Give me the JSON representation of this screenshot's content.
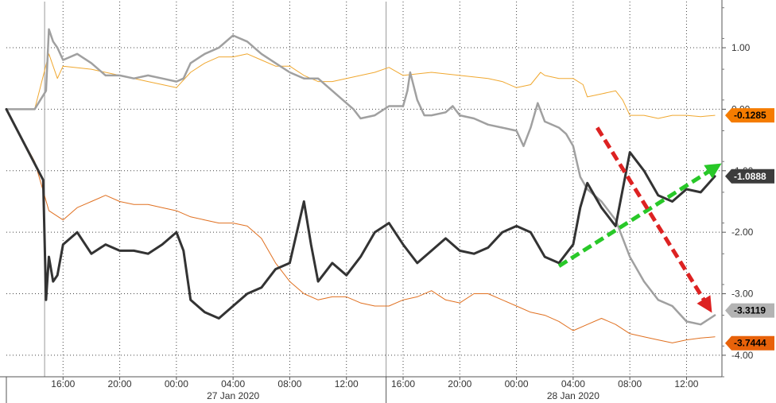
{
  "chart_data": {
    "type": "line",
    "title": "",
    "xlabel": "",
    "ylabel": "",
    "ylim": [
      -4.35,
      1.75
    ],
    "y_ticks": [
      {
        "value": 1.0,
        "label": "1.00"
      },
      {
        "value": 0.0,
        "label": "0.00"
      },
      {
        "value": -1.0,
        "label": "-1.00"
      },
      {
        "value": -2.0,
        "label": "-2.00"
      },
      {
        "value": -3.0,
        "label": "-3.00"
      },
      {
        "value": -4.0,
        "label": "-4.00"
      }
    ],
    "x_ticks": [
      "16:00",
      "20:00",
      "00:00",
      "04:00",
      "08:00",
      "12:00",
      "16:00",
      "20:00",
      "00:00",
      "04:00",
      "08:00",
      "12:00"
    ],
    "x_tick_hours": [
      16,
      20,
      24,
      28,
      32,
      36,
      40,
      44,
      48,
      52,
      56,
      60
    ],
    "date_labels": [
      {
        "label": "27 Jan 2020",
        "hour": 28
      },
      {
        "label": "28 Jan 2020",
        "hour": 52
      }
    ],
    "x_range_hours": [
      12,
      62.5
    ],
    "grid": true,
    "series": [
      {
        "color": "#f0a830",
        "width": 1,
        "last_value": "-0.1285",
        "badge_color": "#f57c00",
        "badge_text_color": "#000000",
        "points": [
          [
            12,
            0
          ],
          [
            14,
            0
          ],
          [
            15,
            0.9
          ],
          [
            15.6,
            0.5
          ],
          [
            16,
            0.7
          ],
          [
            18,
            0.65
          ],
          [
            20,
            0.55
          ],
          [
            22,
            0.45
          ],
          [
            24,
            0.35
          ],
          [
            25,
            0.6
          ],
          [
            26,
            0.75
          ],
          [
            27,
            0.85
          ],
          [
            28,
            0.85
          ],
          [
            29,
            0.9
          ],
          [
            30,
            0.8
          ],
          [
            31,
            0.7
          ],
          [
            32,
            0.7
          ],
          [
            33,
            0.55
          ],
          [
            34,
            0.45
          ],
          [
            35,
            0.45
          ],
          [
            36,
            0.5
          ],
          [
            37,
            0.55
          ],
          [
            38,
            0.6
          ],
          [
            39,
            0.68
          ],
          [
            40,
            0.55
          ],
          [
            42,
            0.6
          ],
          [
            44,
            0.55
          ],
          [
            46,
            0.5
          ],
          [
            47,
            0.45
          ],
          [
            48,
            0.35
          ],
          [
            49,
            0.4
          ],
          [
            49.7,
            0.6
          ],
          [
            50,
            0.55
          ],
          [
            51,
            0.5
          ],
          [
            52,
            0.5
          ],
          [
            52.7,
            0.4
          ],
          [
            53,
            0.2
          ],
          [
            54,
            0.25
          ],
          [
            55,
            0.3
          ],
          [
            55.5,
            0.15
          ],
          [
            56,
            -0.1
          ],
          [
            57,
            -0.1
          ],
          [
            58,
            -0.15
          ],
          [
            59,
            -0.1
          ],
          [
            60,
            -0.1
          ],
          [
            61,
            -0.12
          ],
          [
            62,
            -0.1
          ]
        ]
      },
      {
        "color": "#a0a0a0",
        "width": 2.5,
        "last_value": "-3.3119",
        "badge_color": "#b3b3b3",
        "badge_text_color": "#000000",
        "points": [
          [
            12,
            0
          ],
          [
            14,
            0
          ],
          [
            14.8,
            0.3
          ],
          [
            15,
            1.3
          ],
          [
            15.3,
            1.1
          ],
          [
            15.6,
            1.0
          ],
          [
            16,
            0.8
          ],
          [
            17,
            0.9
          ],
          [
            18,
            0.75
          ],
          [
            19,
            0.55
          ],
          [
            20,
            0.55
          ],
          [
            21,
            0.5
          ],
          [
            22,
            0.55
          ],
          [
            23,
            0.5
          ],
          [
            24,
            0.45
          ],
          [
            24.5,
            0.5
          ],
          [
            25,
            0.75
          ],
          [
            26,
            0.9
          ],
          [
            27,
            1.0
          ],
          [
            28,
            1.2
          ],
          [
            29,
            1.1
          ],
          [
            30,
            0.9
          ],
          [
            31,
            0.75
          ],
          [
            32,
            0.6
          ],
          [
            33,
            0.5
          ],
          [
            34,
            0.5
          ],
          [
            35,
            0.3
          ],
          [
            36,
            0.1
          ],
          [
            36.5,
            0.0
          ],
          [
            37,
            -0.15
          ],
          [
            38,
            -0.1
          ],
          [
            39,
            0.05
          ],
          [
            40,
            0.05
          ],
          [
            40.3,
            0.3
          ],
          [
            40.5,
            0.6
          ],
          [
            41,
            0.15
          ],
          [
            41.5,
            -0.1
          ],
          [
            42,
            -0.1
          ],
          [
            43,
            -0.05
          ],
          [
            43.5,
            0.05
          ],
          [
            44,
            -0.1
          ],
          [
            45,
            -0.15
          ],
          [
            46,
            -0.25
          ],
          [
            47,
            -0.3
          ],
          [
            48,
            -0.35
          ],
          [
            48.5,
            -0.6
          ],
          [
            49,
            -0.3
          ],
          [
            49.5,
            0.1
          ],
          [
            50,
            -0.2
          ],
          [
            51,
            -0.3
          ],
          [
            51.5,
            -0.4
          ],
          [
            52,
            -0.6
          ],
          [
            52.5,
            -1.1
          ],
          [
            53,
            -1.3
          ],
          [
            54,
            -1.5
          ],
          [
            55,
            -1.8
          ],
          [
            56,
            -2.4
          ],
          [
            57,
            -2.8
          ],
          [
            58,
            -3.1
          ],
          [
            59,
            -3.2
          ],
          [
            60,
            -3.45
          ],
          [
            61,
            -3.5
          ],
          [
            62,
            -3.35
          ]
        ]
      },
      {
        "color": "#e07020",
        "width": 1,
        "last_value": "-3.7444",
        "badge_color": "#e8620a",
        "badge_text_color": "#000000",
        "points": [
          [
            12,
            0
          ],
          [
            14,
            -0.85
          ],
          [
            15,
            -1.65
          ],
          [
            16,
            -1.8
          ],
          [
            17,
            -1.6
          ],
          [
            18,
            -1.5
          ],
          [
            19,
            -1.4
          ],
          [
            20,
            -1.5
          ],
          [
            21,
            -1.55
          ],
          [
            22,
            -1.55
          ],
          [
            23,
            -1.6
          ],
          [
            24,
            -1.65
          ],
          [
            25,
            -1.75
          ],
          [
            26,
            -1.8
          ],
          [
            27,
            -1.85
          ],
          [
            28,
            -1.85
          ],
          [
            29,
            -1.9
          ],
          [
            30,
            -2.1
          ],
          [
            31,
            -2.5
          ],
          [
            32,
            -2.8
          ],
          [
            33,
            -3.0
          ],
          [
            34,
            -3.1
          ],
          [
            35,
            -3.05
          ],
          [
            36,
            -3.05
          ],
          [
            37,
            -3.15
          ],
          [
            38,
            -3.2
          ],
          [
            39,
            -3.2
          ],
          [
            40,
            -3.1
          ],
          [
            41,
            -3.05
          ],
          [
            42,
            -2.95
          ],
          [
            43,
            -3.1
          ],
          [
            44,
            -3.15
          ],
          [
            45,
            -3.0
          ],
          [
            46,
            -3.0
          ],
          [
            47,
            -3.1
          ],
          [
            48,
            -3.2
          ],
          [
            49,
            -3.3
          ],
          [
            50,
            -3.35
          ],
          [
            51,
            -3.45
          ],
          [
            52,
            -3.6
          ],
          [
            53,
            -3.5
          ],
          [
            54,
            -3.4
          ],
          [
            55,
            -3.5
          ],
          [
            56,
            -3.65
          ],
          [
            57,
            -3.7
          ],
          [
            58,
            -3.75
          ],
          [
            59,
            -3.8
          ],
          [
            60,
            -3.75
          ],
          [
            61,
            -3.72
          ],
          [
            62,
            -3.7
          ]
        ]
      },
      {
        "color": "#333333",
        "width": 3,
        "last_value": "-1.0888",
        "badge_color": "#3c3c3c",
        "badge_text_color": "#ffffff",
        "points": [
          [
            12,
            0
          ],
          [
            14.6,
            -1.15
          ],
          [
            14.8,
            -3.1
          ],
          [
            15,
            -2.4
          ],
          [
            15.3,
            -2.8
          ],
          [
            15.6,
            -2.7
          ],
          [
            16,
            -2.2
          ],
          [
            17,
            -2.0
          ],
          [
            18,
            -2.35
          ],
          [
            19,
            -2.2
          ],
          [
            20,
            -2.3
          ],
          [
            21,
            -2.3
          ],
          [
            22,
            -2.35
          ],
          [
            23,
            -2.2
          ],
          [
            24,
            -2.0
          ],
          [
            24.5,
            -2.3
          ],
          [
            25,
            -3.1
          ],
          [
            26,
            -3.3
          ],
          [
            27,
            -3.4
          ],
          [
            28,
            -3.2
          ],
          [
            29,
            -3.0
          ],
          [
            30,
            -2.9
          ],
          [
            31,
            -2.6
          ],
          [
            32,
            -2.5
          ],
          [
            33,
            -1.5
          ],
          [
            33.5,
            -2.2
          ],
          [
            34,
            -2.8
          ],
          [
            35,
            -2.5
          ],
          [
            36,
            -2.7
          ],
          [
            37,
            -2.4
          ],
          [
            38,
            -2.0
          ],
          [
            39,
            -1.85
          ],
          [
            40,
            -2.2
          ],
          [
            41,
            -2.5
          ],
          [
            42,
            -2.3
          ],
          [
            43,
            -2.1
          ],
          [
            44,
            -2.3
          ],
          [
            45,
            -2.35
          ],
          [
            46,
            -2.25
          ],
          [
            47,
            -2.0
          ],
          [
            48,
            -1.9
          ],
          [
            49,
            -2.0
          ],
          [
            50,
            -2.4
          ],
          [
            51,
            -2.5
          ],
          [
            52,
            -2.2
          ],
          [
            52.5,
            -1.6
          ],
          [
            53,
            -1.2
          ],
          [
            54,
            -1.6
          ],
          [
            55,
            -1.9
          ],
          [
            56,
            -0.7
          ],
          [
            57,
            -1.0
          ],
          [
            58,
            -1.4
          ],
          [
            59,
            -1.5
          ],
          [
            60,
            -1.3
          ],
          [
            61,
            -1.35
          ],
          [
            62,
            -1.09
          ]
        ]
      }
    ],
    "annotations": [
      {
        "kind": "dashed-arrow",
        "color": "#28c828",
        "from": [
          51,
          -2.55
        ],
        "to": [
          62,
          -0.95
        ]
      },
      {
        "kind": "dashed-arrow",
        "color": "#dd2222",
        "from": [
          53.7,
          -0.3
        ],
        "to": [
          61.5,
          -3.2
        ]
      }
    ],
    "session_markers_hours": [
      14.7,
      38.8
    ]
  }
}
